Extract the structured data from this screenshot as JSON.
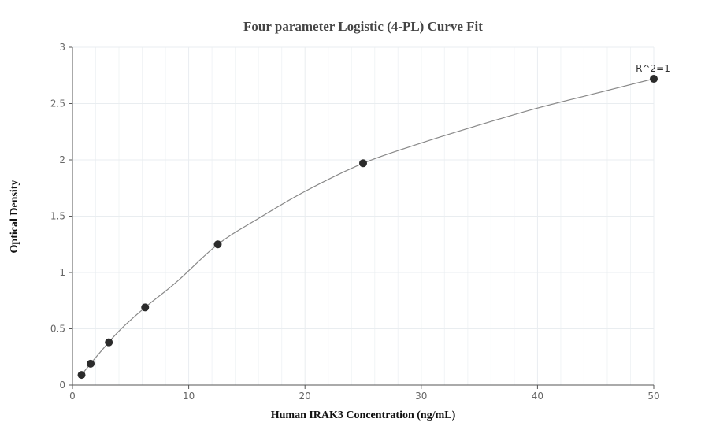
{
  "chart_data": {
    "type": "scatter",
    "title": "Four parameter Logistic (4-PL) Curve Fit",
    "xlabel": "Human IRAK3 Concentration (ng/mL)",
    "ylabel": "Optical Density",
    "xlim": [
      0,
      50
    ],
    "ylim": [
      0,
      3
    ],
    "x_ticks": [
      0,
      10,
      20,
      30,
      40,
      50
    ],
    "y_ticks": [
      0,
      0.5,
      1,
      1.5,
      2,
      2.5,
      3
    ],
    "x_tick_labels": [
      "0",
      "10",
      "20",
      "30",
      "40",
      "50"
    ],
    "y_tick_labels": [
      "0",
      "0.5",
      "1",
      "1.5",
      "2",
      "2.5",
      "3"
    ],
    "grid": true,
    "points": [
      {
        "x": 0.78,
        "y": 0.09
      },
      {
        "x": 1.56,
        "y": 0.19
      },
      {
        "x": 3.13,
        "y": 0.38
      },
      {
        "x": 6.25,
        "y": 0.69
      },
      {
        "x": 12.5,
        "y": 1.25
      },
      {
        "x": 25,
        "y": 1.97
      },
      {
        "x": 50,
        "y": 2.72
      }
    ],
    "fit_curve": {
      "model": "4PL",
      "values": [
        {
          "x": 0.78,
          "y": 0.09
        },
        {
          "x": 2,
          "y": 0.245
        },
        {
          "x": 4,
          "y": 0.48
        },
        {
          "x": 6.25,
          "y": 0.69
        },
        {
          "x": 9,
          "y": 0.92
        },
        {
          "x": 12.5,
          "y": 1.25
        },
        {
          "x": 16,
          "y": 1.48
        },
        {
          "x": 20,
          "y": 1.72
        },
        {
          "x": 25,
          "y": 1.97
        },
        {
          "x": 30,
          "y": 2.15
        },
        {
          "x": 35,
          "y": 2.31
        },
        {
          "x": 40,
          "y": 2.46
        },
        {
          "x": 45,
          "y": 2.59
        },
        {
          "x": 50,
          "y": 2.72
        }
      ]
    },
    "annotation": {
      "text": "R^2=1",
      "x": 50,
      "y": 2.72
    },
    "colors": {
      "point": "#2b2b2b",
      "curve": "#888888",
      "grid": "#e9edf0",
      "axis": "#555555"
    }
  }
}
